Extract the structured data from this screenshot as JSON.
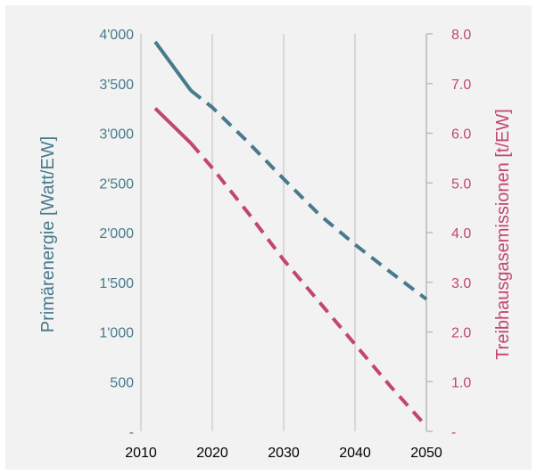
{
  "chart_data": {
    "type": "line",
    "title": "",
    "xlabel": "",
    "x_ticks": [
      "2010",
      "2020",
      "2030",
      "2040",
      "2050"
    ],
    "xlim": [
      2010,
      2050
    ],
    "grid": "vertical",
    "y_left": {
      "label": "Primärenergie [Watt/EW]",
      "ylim": [
        0,
        4000
      ],
      "ticks": [
        "-",
        "500",
        "1'000",
        "1'500",
        "2'000",
        "2'500",
        "3'000",
        "3'500",
        "4'000"
      ],
      "color": "#477a8c"
    },
    "y_right": {
      "label": "Treibhausgasemissionen [t/EW]",
      "ylim": [
        0,
        8
      ],
      "ticks": [
        "-",
        "1.0",
        "2.0",
        "3.0",
        "4.0",
        "5.0",
        "6.0",
        "7.0",
        "8.0"
      ],
      "color": "#c2466f"
    },
    "series": [
      {
        "axis": "left",
        "color": "#477a8c",
        "solid": {
          "x": [
            2012,
            2017
          ],
          "y": [
            3920,
            3430
          ]
        },
        "dashed": {
          "x": [
            2017,
            2020,
            2025,
            2030,
            2035,
            2040,
            2045,
            2050
          ],
          "y": [
            3430,
            3260,
            2910,
            2540,
            2180,
            1880,
            1600,
            1330
          ]
        }
      },
      {
        "axis": "right",
        "color": "#c2466f",
        "solid": {
          "x": [
            2012,
            2017
          ],
          "y": [
            6.5,
            5.8
          ]
        },
        "dashed": {
          "x": [
            2017,
            2020,
            2025,
            2030,
            2035,
            2040,
            2045,
            2050
          ],
          "y": [
            5.8,
            5.3,
            4.4,
            3.45,
            2.6,
            1.75,
            0.9,
            0.1
          ]
        }
      }
    ]
  }
}
